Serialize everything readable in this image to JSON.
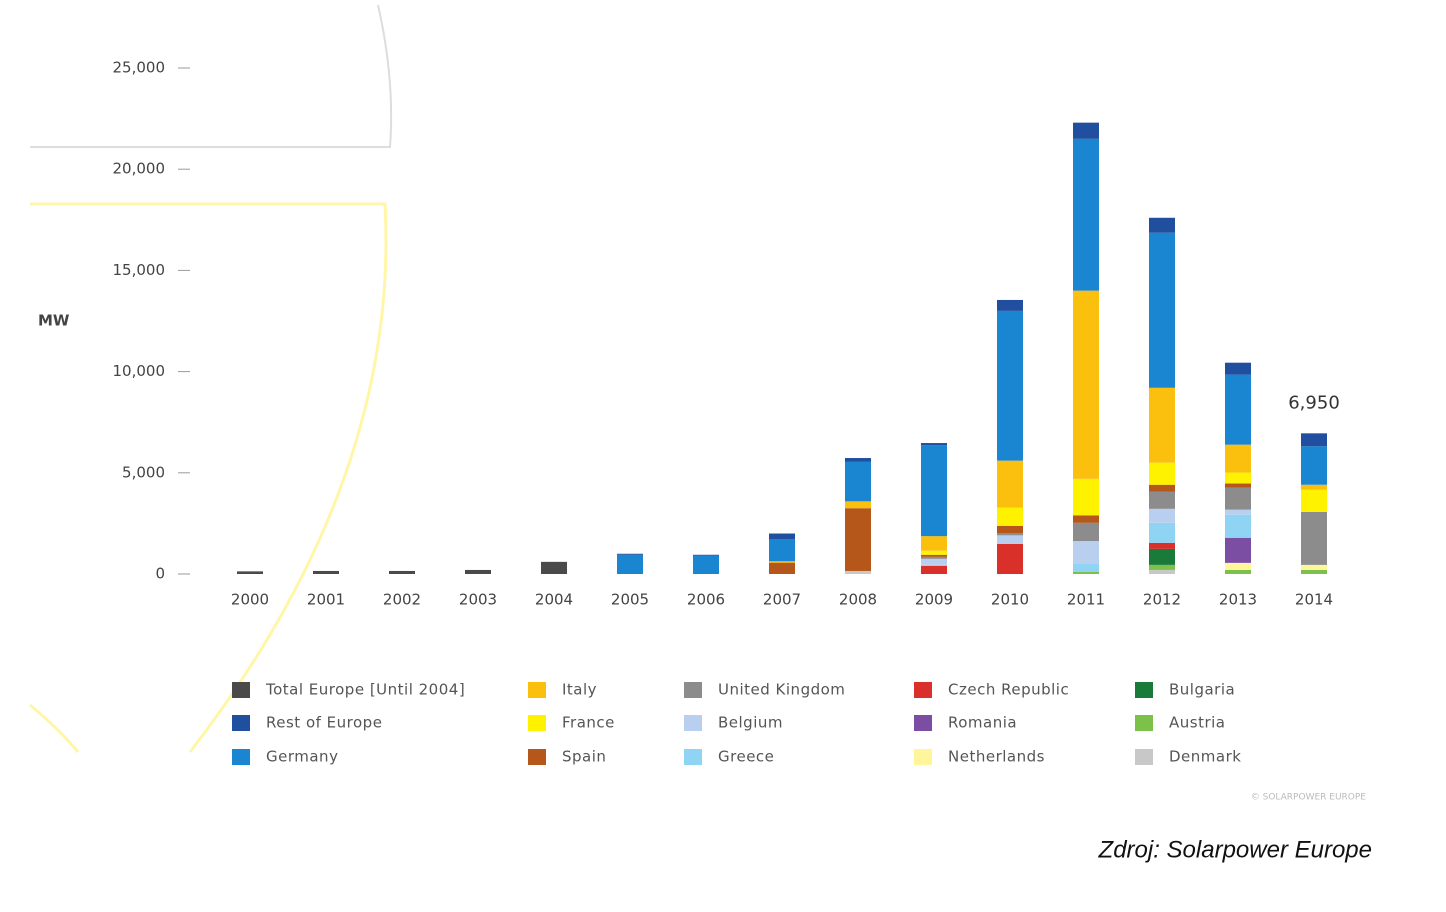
{
  "chart_data": {
    "type": "stacked-bar",
    "y_label": "MW",
    "categories": [
      "2000",
      "2001",
      "2002",
      "2003",
      "2004",
      "2005",
      "2006",
      "2007",
      "2008",
      "2009",
      "2010",
      "2011",
      "2012",
      "2013",
      "2014"
    ],
    "ylim": [
      0,
      25000
    ],
    "yticks": [
      0,
      {
        "value": 5000,
        "label": "5,000"
      },
      {
        "value": 10000,
        "label": "10,000"
      },
      {
        "value": 15000,
        "label": "15,000"
      },
      {
        "value": 20000,
        "label": "20,000"
      },
      {
        "value": 25000,
        "label": "25,000"
      }
    ],
    "series": [
      {
        "name": "Total Europe [Until 2004]",
        "color": "#4a4a4a",
        "values": [
          130,
          150,
          150,
          200,
          600,
          null,
          null,
          null,
          null,
          null,
          null,
          null,
          null,
          null,
          null
        ]
      },
      {
        "name": "Rest of Europe",
        "color": "#1f4f9e",
        "values": [
          null,
          null,
          null,
          null,
          null,
          50,
          50,
          270,
          190,
          100,
          540,
          800,
          740,
          590,
          640
        ]
      },
      {
        "name": "Germany",
        "color": "#1a85d0",
        "values": [
          null,
          null,
          null,
          null,
          null,
          950,
          900,
          1100,
          1950,
          4500,
          7400,
          7500,
          7660,
          3460,
          1900
        ]
      },
      {
        "name": "Italy",
        "color": "#fbbf0e",
        "values": [
          null,
          null,
          null,
          null,
          null,
          null,
          null,
          70,
          340,
          720,
          2320,
          9300,
          3700,
          1380,
          250
        ]
      },
      {
        "name": "France",
        "color": "#fff200",
        "values": [
          null,
          null,
          null,
          null,
          null,
          null,
          null,
          null,
          null,
          200,
          900,
          1800,
          1090,
          540,
          1090
        ]
      },
      {
        "name": "Spain",
        "color": "#b5561a",
        "values": [
          null,
          null,
          null,
          null,
          null,
          null,
          null,
          560,
          3100,
          100,
          370,
          370,
          350,
          200,
          null
        ]
      },
      {
        "name": "United Kingdom",
        "color": "#8c8c8c",
        "values": [
          null,
          null,
          null,
          null,
          null,
          null,
          null,
          null,
          null,
          100,
          100,
          900,
          840,
          1090,
          2620
        ]
      },
      {
        "name": "Belgium",
        "color": "#b9cff0",
        "values": [
          null,
          null,
          null,
          null,
          null,
          null,
          null,
          null,
          null,
          300,
          420,
          1100,
          690,
          250,
          null
        ]
      },
      {
        "name": "Greece",
        "color": "#8fd4f2",
        "values": [
          null,
          null,
          null,
          null,
          null,
          null,
          null,
          null,
          null,
          50,
          null,
          430,
          990,
          1140,
          null
        ]
      },
      {
        "name": "Czech Republic",
        "color": "#d9302a",
        "values": [
          null,
          null,
          null,
          null,
          null,
          null,
          null,
          null,
          null,
          400,
          1490,
          null,
          300,
          null,
          null
        ]
      },
      {
        "name": "Romania",
        "color": "#7b4ea3",
        "values": [
          null,
          null,
          null,
          null,
          null,
          null,
          null,
          null,
          null,
          null,
          null,
          null,
          null,
          1240,
          null
        ]
      },
      {
        "name": "Netherlands",
        "color": "#fff59a",
        "values": [
          null,
          null,
          null,
          null,
          null,
          null,
          null,
          null,
          null,
          null,
          null,
          null,
          null,
          350,
          250
        ]
      },
      {
        "name": "Bulgaria",
        "color": "#1a7a3a",
        "values": [
          null,
          null,
          null,
          null,
          null,
          null,
          null,
          null,
          null,
          null,
          null,
          null,
          790,
          null,
          null
        ]
      },
      {
        "name": "Austria",
        "color": "#7cc24a",
        "values": [
          null,
          null,
          null,
          null,
          null,
          null,
          null,
          null,
          null,
          null,
          null,
          100,
          250,
          200,
          200
        ]
      },
      {
        "name": "Denmark",
        "color": "#c8c8c8",
        "values": [
          null,
          null,
          null,
          null,
          null,
          null,
          null,
          null,
          150,
          null,
          null,
          null,
          200,
          null,
          null
        ]
      }
    ],
    "annotations": [
      {
        "text": "6,950",
        "category": "2014",
        "value": 6950
      }
    ],
    "copyright": "© SOLARPOWER EUROPE",
    "source": "Zdroj: Solarpower Europe"
  }
}
